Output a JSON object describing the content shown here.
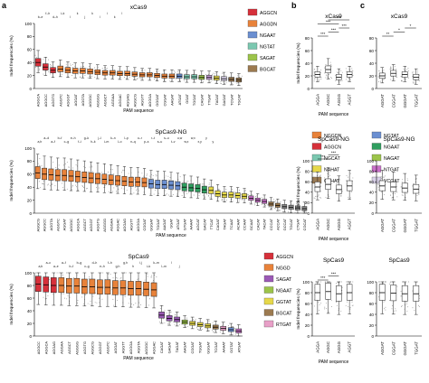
{
  "panel_letters": [
    "a",
    "b",
    "c"
  ],
  "chart_data": [
    {
      "id": "a1",
      "type": "box",
      "title": "xCas9",
      "xlabel": "PAM sequence",
      "ylabel": "Indel frequencies (%)",
      "ylim": [
        0,
        100
      ],
      "yticks": [
        0,
        20,
        40,
        60,
        80,
        100
      ],
      "categories": [
        "AGGCA",
        "AGGCC",
        "AGGTG",
        "AGGTC",
        "AGGGT",
        "AGGAT",
        "AGGTA",
        "AGGGC",
        "AGGGG",
        "AGGCT",
        "AGGAA",
        "AGGAC",
        "AGGAG",
        "AGGCG",
        "AGGTT",
        "AGGGA",
        "GGGAT",
        "CGGAT",
        "AAGAT",
        "ATGAT",
        "GGAT",
        "TGGAT",
        "CAGAT",
        "TTGAT",
        "TAGAT",
        "GAGAT",
        "TCGAT",
        "TGCAT"
      ],
      "colors": [
        "#d6303a",
        "#d6303a",
        "#d6303a",
        "#e8823a",
        "#e8823a",
        "#e8823a",
        "#e8823a",
        "#e8823a",
        "#e8823a",
        "#e8823a",
        "#e8823a",
        "#e8823a",
        "#e8823a",
        "#e8823a",
        "#e8823a",
        "#e8823a",
        "#e8823a",
        "#e8823a",
        "#e8823a",
        "#6b8fd1",
        "#7bc8b0",
        "#7bc8b0",
        "#9cc44a",
        "#c9a0d8",
        "#e6d84a",
        "#d8d0e8",
        "#9c7a50",
        "#9c7a50"
      ],
      "medians": [
        40,
        33,
        28,
        30,
        28,
        27,
        27,
        26,
        25,
        24,
        24,
        23,
        23,
        22,
        21,
        21,
        20,
        19,
        19,
        19,
        18,
        18,
        17,
        17,
        16,
        15,
        14,
        13
      ],
      "sig_labels": [
        "b–e",
        "f–h",
        "d–h",
        "i–k",
        "l",
        "k",
        "j",
        "k",
        "l",
        "i",
        "k",
        "l"
      ],
      "legend": {
        "entries": [
          "AGGCN",
          "AGGDN",
          "NGAAT",
          "NGTAT",
          "SAGAT",
          "BGCAT"
        ],
        "colors": [
          "#d6303a",
          "#e8823a",
          "#6b8fd1",
          "#7bc8b0",
          "#9cc44a",
          "#9c7a50"
        ]
      }
    },
    {
      "id": "a2",
      "type": "box",
      "title": "SpCas9-NG",
      "xlabel": "PAM sequence",
      "ylabel": "Indel frequencies (%)",
      "ylim": [
        0,
        100
      ],
      "yticks": [
        0,
        20,
        40,
        60,
        80,
        100
      ],
      "categories": [
        "AGGCG",
        "AGGCC",
        "AGGTA",
        "AGGTC",
        "AGGAT",
        "AGGGC",
        "AGGCA",
        "AGGCT",
        "AGGGT",
        "AGGTG",
        "AGGGG",
        "AGGAA",
        "AGGAC",
        "AGGAG",
        "AGGTT",
        "AGGGA",
        "CGGAT",
        "GGGAT",
        "TGGAT",
        "AAGAT",
        "GGAT",
        "ATGAT",
        "GTGAT",
        "AAAAT",
        "AGCAT",
        "GACAT",
        "TTCAT",
        "CAGAT",
        "TAGAT",
        "TCAAT",
        "ACAAT",
        "CCAAT",
        "GCAAT",
        "CACAT",
        "TACAT",
        "CCCAT",
        "ACCAT",
        "GCCAT",
        "TGCAT",
        "CTGAT",
        "CGCAT"
      ],
      "colors": [
        "#e8823a",
        "#e8823a",
        "#e8823a",
        "#e8823a",
        "#e8823a",
        "#e8823a",
        "#e8823a",
        "#e8823a",
        "#e8823a",
        "#e8823a",
        "#e8823a",
        "#e8823a",
        "#e8823a",
        "#e8823a",
        "#e8823a",
        "#e8823a",
        "#e8823a",
        "#6b8fd1",
        "#6b8fd1",
        "#6b8fd1",
        "#6b8fd1",
        "#6b8fd1",
        "#2f9e5f",
        "#2f9e5f",
        "#2f9e5f",
        "#2f9e5f",
        "#e6d84a",
        "#e6d84a",
        "#e6d84a",
        "#e6d84a",
        "#e6d84a",
        "#e6d84a",
        "#c870c8",
        "#c870c8",
        "#c870c8",
        "#9c7a50",
        "#9c7a50",
        "#8a8a8a",
        "#8a8a8a",
        "#8a8a8a",
        "#8a8a8a"
      ],
      "medians": [
        62,
        60,
        59,
        58,
        58,
        57,
        56,
        55,
        54,
        53,
        52,
        51,
        50,
        49,
        48,
        48,
        47,
        45,
        44,
        44,
        43,
        42,
        40,
        39,
        38,
        36,
        35,
        30,
        28,
        28,
        27,
        26,
        23,
        20,
        18,
        14,
        12,
        10,
        9,
        8,
        7
      ],
      "sig_labels": [
        "a,b",
        "a–d",
        "a–f",
        "b–f",
        "c–g",
        "e–h",
        "f–i",
        "g–k",
        "h–k",
        "j–l",
        "i–m",
        "k–n",
        "l–o",
        "l–p",
        "n–q",
        "o–r",
        "p–s",
        "r–t",
        "s–u",
        "s–u",
        "t–v",
        "u,w",
        "w,x",
        "w,x",
        "x,y",
        "y",
        "y"
      ],
      "legend": {
        "entries": [
          "NGGDN",
          "NGTAT",
          "AGGCN",
          "NGAAT",
          "NGCAT",
          "NAGAT",
          "NAHAT",
          "NTGAT",
          "GTHAT",
          "VCGAT"
        ],
        "colors": [
          "#e8823a",
          "#6b8fd1",
          "#d6303a",
          "#2f9e5f",
          "#7bc8b0",
          "#9cc44a",
          "#e6d84a",
          "#c870c8",
          "#9c7a50",
          "#d8d0e8"
        ]
      }
    },
    {
      "id": "a3",
      "type": "box",
      "title": "SpCas9",
      "xlabel": "PAM sequence",
      "ylabel": "Indel frequencies (%)",
      "ylim": [
        0,
        100
      ],
      "yticks": [
        0,
        20,
        40,
        60,
        80,
        100
      ],
      "categories": [
        "AGGCC",
        "AGGCA",
        "AGGAG",
        "AGGAA",
        "AGGCT",
        "AGGGG",
        "AGGTG",
        "AGGCG",
        "AGGGT",
        "AGGTC",
        "AGGAT",
        "AGGTT",
        "AGGGA",
        "AGGTA",
        "AGGGC",
        "AGGAC",
        "CAGAT",
        "GAGAT",
        "TAGAT",
        "AAGAT",
        "CGGAT",
        "TGGAT",
        "GGGAT",
        "TCGAT",
        "AAAAT",
        "GGTAT",
        "ATGAT"
      ],
      "colors": [
        "#d6303a",
        "#d6303a",
        "#d6303a",
        "#e8823a",
        "#e8823a",
        "#e8823a",
        "#e8823a",
        "#e8823a",
        "#e8823a",
        "#e8823a",
        "#e8823a",
        "#e8823a",
        "#e8823a",
        "#e8823a",
        "#e8823a",
        "#e8823a",
        "#9b59b6",
        "#9b59b6",
        "#9b59b6",
        "#9cc44a",
        "#e6d84a",
        "#e6d84a",
        "#e6d84a",
        "#9c7a50",
        "#e8a0c8",
        "#6b8fd1",
        "#c870c8"
      ],
      "medians": [
        82,
        81,
        80,
        80,
        79,
        79,
        78,
        78,
        77,
        77,
        76,
        76,
        75,
        75,
        74,
        73,
        33,
        28,
        26,
        22,
        20,
        18,
        16,
        14,
        12,
        10,
        8
      ],
      "sig_labels": [
        "a,b",
        "a–c",
        "a–e",
        "a–f",
        "b–f",
        "b–g",
        "c–g",
        "d–h",
        "e–h",
        "f–h",
        "g,h",
        "g,h",
        "h",
        "i,j",
        "i–k",
        "k–m",
        "l–m",
        "l",
        "j"
      ],
      "legend": {
        "entries": [
          "AGGCN",
          "NGGD",
          "SAGAT",
          "NGAAT",
          "GGTAT",
          "BGCAT",
          "RTGAT"
        ],
        "colors": [
          "#d6303a",
          "#e8823a",
          "#9b59b6",
          "#9cc44a",
          "#e6d84a",
          "#9c7a50",
          "#e8a0c8"
        ]
      }
    },
    {
      "id": "b1",
      "type": "box",
      "title": "xCas9",
      "xlabel": "PAM sequence",
      "ylabel": "Indel frequencies (%)",
      "ylim": [
        0,
        80
      ],
      "yticks": [
        0,
        20,
        40,
        60,
        80
      ],
      "categories": [
        "AGGA",
        "AGGC",
        "AGGG",
        "AGGT"
      ],
      "medians": [
        22,
        30,
        18,
        22
      ],
      "significance": [
        "***",
        "***",
        "***",
        "***",
        "***"
      ]
    },
    {
      "id": "b2",
      "type": "box",
      "title": "SpCas9-NG",
      "xlabel": "PAM sequence",
      "ylabel": "Indel frequencies (%)",
      "ylim": [
        0,
        100
      ],
      "yticks": [
        0,
        20,
        40,
        60,
        80,
        100
      ],
      "categories": [
        "AGGA",
        "AGGC",
        "AGGG",
        "AGGT"
      ],
      "medians": [
        50,
        55,
        45,
        52
      ],
      "significance": [
        "***",
        "***"
      ]
    },
    {
      "id": "b3",
      "type": "box",
      "title": "SpCas9",
      "xlabel": "PAM sequence",
      "ylabel": "Indel frequencies (%)",
      "ylim": [
        0,
        100
      ],
      "yticks": [
        0,
        20,
        40,
        60,
        80,
        100
      ],
      "categories": [
        "AGGA",
        "AGGC",
        "AGGG",
        "AGGT"
      ],
      "medians": [
        80,
        82,
        78,
        80
      ],
      "significance": [
        "***",
        "***"
      ]
    },
    {
      "id": "c1",
      "type": "box",
      "title": "xCas9",
      "xlabel": "",
      "ylabel": "",
      "ylim": [
        0,
        80
      ],
      "yticks": [
        0,
        20,
        40,
        60,
        80
      ],
      "categories": [
        "AGGAT",
        "CGGAT",
        "GGGAT",
        "TGGAT"
      ],
      "medians": [
        20,
        24,
        22,
        18
      ],
      "significance": [
        "**",
        "*",
        "*"
      ]
    },
    {
      "id": "c2",
      "type": "box",
      "title": "SpCas9-NG",
      "xlabel": "",
      "ylabel": "",
      "ylim": [
        0,
        100
      ],
      "yticks": [
        0,
        20,
        40,
        60,
        80,
        100
      ],
      "categories": [
        "AGGAT",
        "CGGAT",
        "GGGAT",
        "TGGAT"
      ],
      "medians": [
        52,
        50,
        48,
        46
      ],
      "significance": []
    },
    {
      "id": "c3",
      "type": "box",
      "title": "SpCas9",
      "xlabel": "",
      "ylabel": "",
      "ylim": [
        0,
        100
      ],
      "yticks": [
        0,
        20,
        40,
        60,
        80,
        100
      ],
      "categories": [
        "AGGAT",
        "CGGAT",
        "GGGAT",
        "TGGAT"
      ],
      "medians": [
        80,
        79,
        78,
        78
      ],
      "significance": []
    }
  ]
}
